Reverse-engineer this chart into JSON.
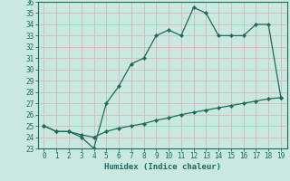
{
  "xlabel": "Humidex (Indice chaleur)",
  "line1_x": [
    0,
    1,
    2,
    3,
    4,
    5,
    6,
    7,
    8,
    9,
    10,
    11,
    12,
    13,
    14,
    15,
    16,
    17,
    18,
    19
  ],
  "line1_y": [
    25.0,
    24.5,
    24.5,
    24.0,
    23.0,
    27.0,
    28.5,
    30.5,
    31.0,
    33.0,
    33.5,
    33.0,
    35.5,
    35.0,
    33.0,
    33.0,
    33.0,
    34.0,
    34.0,
    27.5
  ],
  "line2_x": [
    0,
    1,
    2,
    3,
    4,
    5,
    6,
    7,
    8,
    9,
    10,
    11,
    12,
    13,
    14,
    15,
    16,
    17,
    18,
    19
  ],
  "line2_y": [
    25.0,
    24.5,
    24.5,
    24.2,
    24.0,
    24.5,
    24.8,
    25.0,
    25.2,
    25.5,
    25.7,
    26.0,
    26.2,
    26.4,
    26.6,
    26.8,
    27.0,
    27.2,
    27.4,
    27.5
  ],
  "line_color": "#1a6b5a",
  "bg_color": "#c8e8e0",
  "grid_color": "#b0d4cc",
  "ylim": [
    23,
    36
  ],
  "xlim_min": -0.5,
  "xlim_max": 19.5,
  "yticks": [
    23,
    24,
    25,
    26,
    27,
    28,
    29,
    30,
    31,
    32,
    33,
    34,
    35,
    36
  ],
  "xticks": [
    0,
    1,
    2,
    3,
    4,
    5,
    6,
    7,
    8,
    9,
    10,
    11,
    12,
    13,
    14,
    15,
    16,
    17,
    18,
    19
  ],
  "tick_fontsize": 5.5,
  "xlabel_fontsize": 6.5
}
